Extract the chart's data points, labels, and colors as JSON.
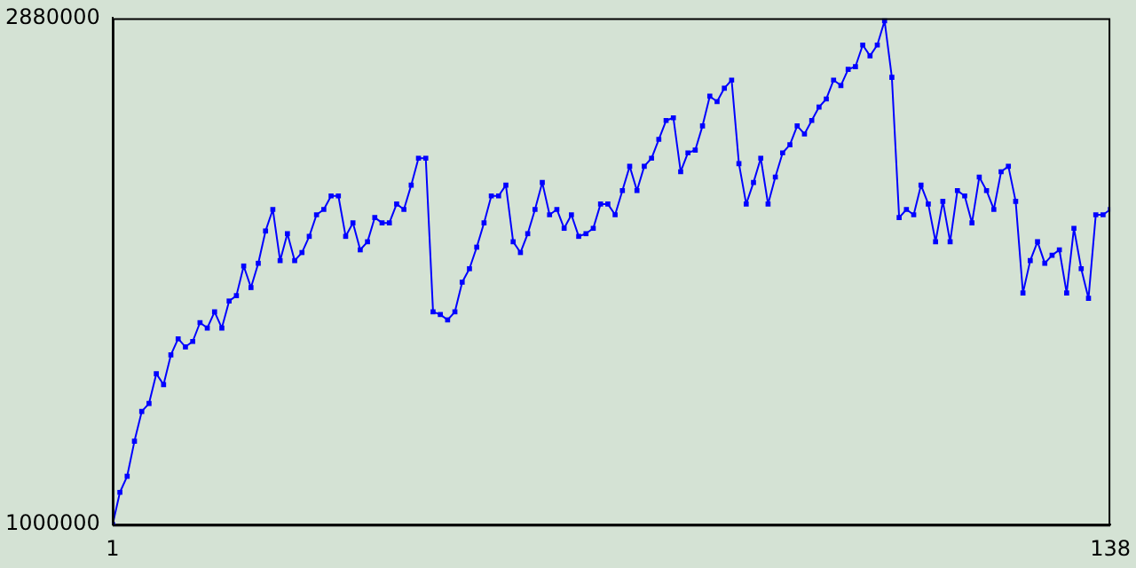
{
  "chart_data": {
    "type": "line",
    "x": [
      1,
      2,
      3,
      4,
      5,
      6,
      7,
      8,
      9,
      10,
      11,
      12,
      13,
      14,
      15,
      16,
      17,
      18,
      19,
      20,
      21,
      22,
      23,
      24,
      25,
      26,
      27,
      28,
      29,
      30,
      31,
      32,
      33,
      34,
      35,
      36,
      37,
      38,
      39,
      40,
      41,
      42,
      43,
      44,
      45,
      46,
      47,
      48,
      49,
      50,
      51,
      52,
      53,
      54,
      55,
      56,
      57,
      58,
      59,
      60,
      61,
      62,
      63,
      64,
      65,
      66,
      67,
      68,
      69,
      70,
      71,
      72,
      73,
      74,
      75,
      76,
      77,
      78,
      79,
      80,
      81,
      82,
      83,
      84,
      85,
      86,
      87,
      88,
      89,
      90,
      91,
      92,
      93,
      94,
      95,
      96,
      97,
      98,
      99,
      100,
      101,
      102,
      103,
      104,
      105,
      106,
      107,
      108,
      109,
      110,
      111,
      112,
      113,
      114,
      115,
      116,
      117,
      118,
      119,
      120,
      121,
      122,
      123,
      124,
      125,
      126,
      127,
      128,
      129,
      130,
      131,
      132,
      133,
      134,
      135,
      136,
      137,
      138
    ],
    "series": [
      {
        "color": "#0000ff",
        "values": [
          1000000,
          1120000,
          1180000,
          1310000,
          1420000,
          1450000,
          1560000,
          1520000,
          1630000,
          1690000,
          1660000,
          1680000,
          1750000,
          1730000,
          1790000,
          1730000,
          1830000,
          1850000,
          1960000,
          1880000,
          1970000,
          2090000,
          2170000,
          1980000,
          2080000,
          1980000,
          2010000,
          2070000,
          2150000,
          2170000,
          2220000,
          2220000,
          2070000,
          2120000,
          2020000,
          2050000,
          2140000,
          2120000,
          2120000,
          2190000,
          2170000,
          2260000,
          2360000,
          2360000,
          1790000,
          1780000,
          1760000,
          1790000,
          1900000,
          1950000,
          2030000,
          2120000,
          2220000,
          2220000,
          2260000,
          2050000,
          2010000,
          2080000,
          2170000,
          2270000,
          2150000,
          2170000,
          2100000,
          2150000,
          2070000,
          2080000,
          2100000,
          2190000,
          2190000,
          2150000,
          2240000,
          2330000,
          2240000,
          2330000,
          2360000,
          2430000,
          2500000,
          2510000,
          2310000,
          2380000,
          2390000,
          2480000,
          2590000,
          2570000,
          2620000,
          2650000,
          2340000,
          2190000,
          2270000,
          2360000,
          2190000,
          2290000,
          2380000,
          2410000,
          2480000,
          2450000,
          2500000,
          2550000,
          2580000,
          2650000,
          2630000,
          2690000,
          2700000,
          2780000,
          2740000,
          2780000,
          2870000,
          2660000,
          2140000,
          2170000,
          2150000,
          2260000,
          2190000,
          2050000,
          2200000,
          2050000,
          2240000,
          2220000,
          2120000,
          2290000,
          2240000,
          2170000,
          2310000,
          2330000,
          2200000,
          1860000,
          1980000,
          2050000,
          1970000,
          2000000,
          2020000,
          1860000,
          2100000,
          1950000,
          1840000,
          2150000,
          2150000,
          2170000
        ]
      }
    ],
    "xlim": [
      1,
      138
    ],
    "xticks": [
      1,
      138
    ],
    "ylim": [
      1000000,
      2880000
    ],
    "yticks": [
      1000000,
      2880000
    ],
    "marker": "square",
    "line_style": "solid"
  }
}
